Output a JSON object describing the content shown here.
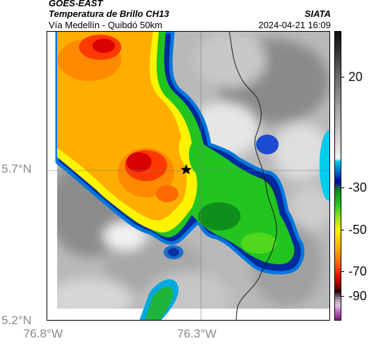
{
  "header": {
    "satellite": "GOES-EAST",
    "product": "Temperatura de Brillo CH13",
    "subtitle": "Vía Medellín - Quibdó 50km",
    "organization": "SIATA",
    "timestamp": "2024-04-21 16:09"
  },
  "map": {
    "lat_labels": [
      "5.7°N",
      "5.2°N"
    ],
    "lon_labels": [
      "76.8°W",
      "76.3°W"
    ],
    "marker": "star-icon",
    "graticule": true
  },
  "colorbar": {
    "labels": [
      "20",
      "-30",
      "-50",
      "-70",
      "-90"
    ],
    "unit_hint": "",
    "colors": {
      "warm_gray": "#d8d8d8",
      "cold_blue": "#0000aa",
      "green": "#22cc22",
      "yellow": "#fff200",
      "orange": "#ffb000",
      "red": "#d80000",
      "dark_red": "#6d0000",
      "magenta": "#c06ac0"
    }
  }
}
